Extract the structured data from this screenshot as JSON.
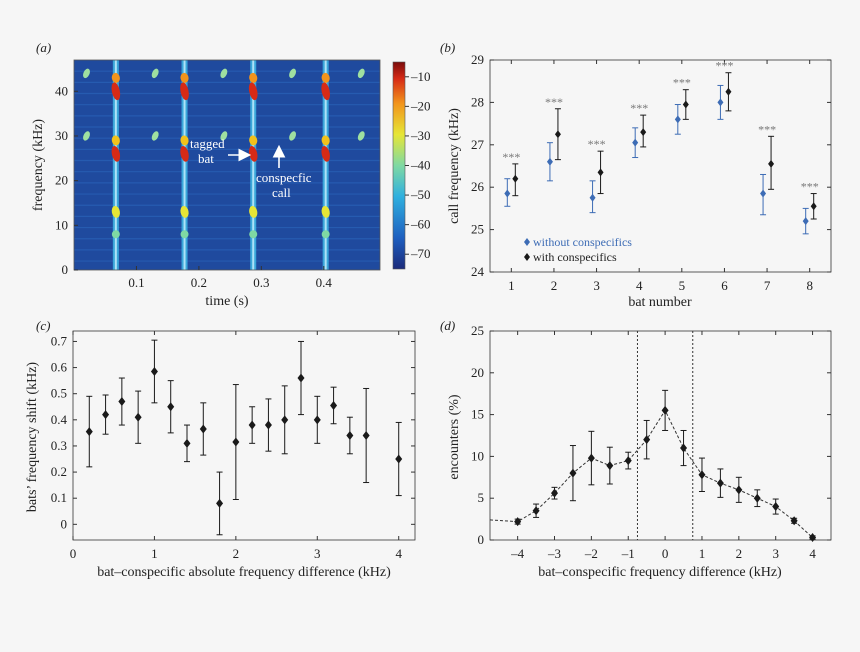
{
  "colors": {
    "blue": "#3d6cb5",
    "black": "#1a1a1a",
    "spectro_bg": "#1f4a9e"
  },
  "chart_data": [
    {
      "panel": "(a)",
      "type": "heatmap",
      "xlabel": "time (s)",
      "ylabel": "frequency (kHz)",
      "x_ticks": [
        "0.1",
        "0.2",
        "0.3",
        "0.4"
      ],
      "y_ticks": [
        "0",
        "10",
        "20",
        "30",
        "40"
      ],
      "xlim": [
        0,
        0.49
      ],
      "ylim": [
        0,
        47
      ],
      "colorbar_ticks": [
        "-10",
        "-20",
        "-30",
        "-40",
        "-50",
        "-60",
        "-70"
      ],
      "colorbar_range": [
        -75,
        -5
      ],
      "calls_time_s": [
        0.067,
        0.177,
        0.287,
        0.403
      ],
      "conspecific_calls_time_s": [
        0.02,
        0.13,
        0.24,
        0.35,
        0.46
      ],
      "annotations": {
        "tagged": "tagged\nbat",
        "conspecific": "conspecfic\ncall"
      }
    },
    {
      "panel": "(b)",
      "type": "scatter",
      "xlabel": "bat number",
      "ylabel": "call frequency (kHz)",
      "xlim": [
        0.5,
        8.5
      ],
      "ylim": [
        24,
        29
      ],
      "categories": [
        "1",
        "2",
        "3",
        "4",
        "5",
        "6",
        "7",
        "8"
      ],
      "y_ticks": [
        "24",
        "25",
        "26",
        "27",
        "28",
        "29"
      ],
      "significance": "***",
      "legend_position": "bottom-left",
      "series": [
        {
          "name": "without conspecifics",
          "values": [
            25.85,
            26.6,
            25.75,
            27.05,
            27.6,
            28.0,
            25.85,
            25.2
          ],
          "err_low": [
            0.3,
            0.45,
            0.35,
            0.35,
            0.35,
            0.4,
            0.5,
            0.3
          ],
          "err_high": [
            0.35,
            0.45,
            0.4,
            0.35,
            0.35,
            0.4,
            0.45,
            0.3
          ]
        },
        {
          "name": "with conspecifics",
          "values": [
            26.2,
            27.25,
            26.35,
            27.3,
            27.95,
            28.25,
            26.55,
            25.55
          ],
          "err_low": [
            0.4,
            0.6,
            0.5,
            0.35,
            0.35,
            0.45,
            0.6,
            0.3
          ],
          "err_high": [
            0.35,
            0.6,
            0.5,
            0.4,
            0.35,
            0.45,
            0.65,
            0.3
          ]
        }
      ]
    },
    {
      "panel": "(c)",
      "type": "scatter",
      "xlabel": "bat–conspecific absolute frequency difference (kHz)",
      "ylabel": "bats’ frequency shift (kHz)",
      "xlim": [
        0,
        4.2
      ],
      "ylim": [
        -0.06,
        0.74
      ],
      "x_ticks": [
        "0",
        "1",
        "2",
        "3",
        "4"
      ],
      "y_ticks": [
        "0",
        "0.1",
        "0.2",
        "0.3",
        "0.4",
        "0.5",
        "0.6",
        "0.7"
      ],
      "x": [
        0.2,
        0.4,
        0.6,
        0.8,
        1.0,
        1.2,
        1.4,
        1.6,
        1.8,
        2.0,
        2.2,
        2.4,
        2.6,
        2.8,
        3.0,
        3.2,
        3.4,
        3.6,
        4.0
      ],
      "y": [
        0.355,
        0.42,
        0.47,
        0.41,
        0.585,
        0.45,
        0.31,
        0.365,
        0.08,
        0.315,
        0.38,
        0.38,
        0.4,
        0.56,
        0.4,
        0.455,
        0.34,
        0.34,
        0.25
      ],
      "err": [
        0.135,
        0.075,
        0.09,
        0.1,
        0.12,
        0.1,
        0.07,
        0.1,
        0.12,
        0.22,
        0.07,
        0.1,
        0.13,
        0.14,
        0.09,
        0.07,
        0.07,
        0.18,
        0.14
      ]
    },
    {
      "panel": "(d)",
      "type": "line",
      "xlabel": "bat–conspecific frequency difference (kHz)",
      "ylabel": "encounters (%)",
      "xlim": [
        -4.75,
        4.5
      ],
      "ylim": [
        0,
        25
      ],
      "x_ticks": [
        "-4",
        "-3",
        "-2",
        "-1",
        "0",
        "1",
        "2",
        "3",
        "4"
      ],
      "y_ticks": [
        "0",
        "5",
        "10",
        "15",
        "20",
        "25"
      ],
      "vlines": [
        -0.75,
        0.75
      ],
      "x": [
        -4.0,
        -3.5,
        -3.0,
        -2.5,
        -2.0,
        -1.5,
        -1.0,
        -0.5,
        0.0,
        0.5,
        1.0,
        1.5,
        2.0,
        2.5,
        3.0,
        3.5,
        4.0
      ],
      "y": [
        2.2,
        3.5,
        5.6,
        8.0,
        9.8,
        8.9,
        9.5,
        12.0,
        15.5,
        11.0,
        7.8,
        6.8,
        6.0,
        5.0,
        4.0,
        2.3,
        0.3
      ],
      "err": [
        0.3,
        0.8,
        0.7,
        3.3,
        3.2,
        2.2,
        1.0,
        2.3,
        2.4,
        2.1,
        2.0,
        1.7,
        1.5,
        1.0,
        0.9,
        0.3,
        0.2
      ],
      "lead_in": {
        "x": -4.75,
        "y": 2.4
      }
    }
  ]
}
